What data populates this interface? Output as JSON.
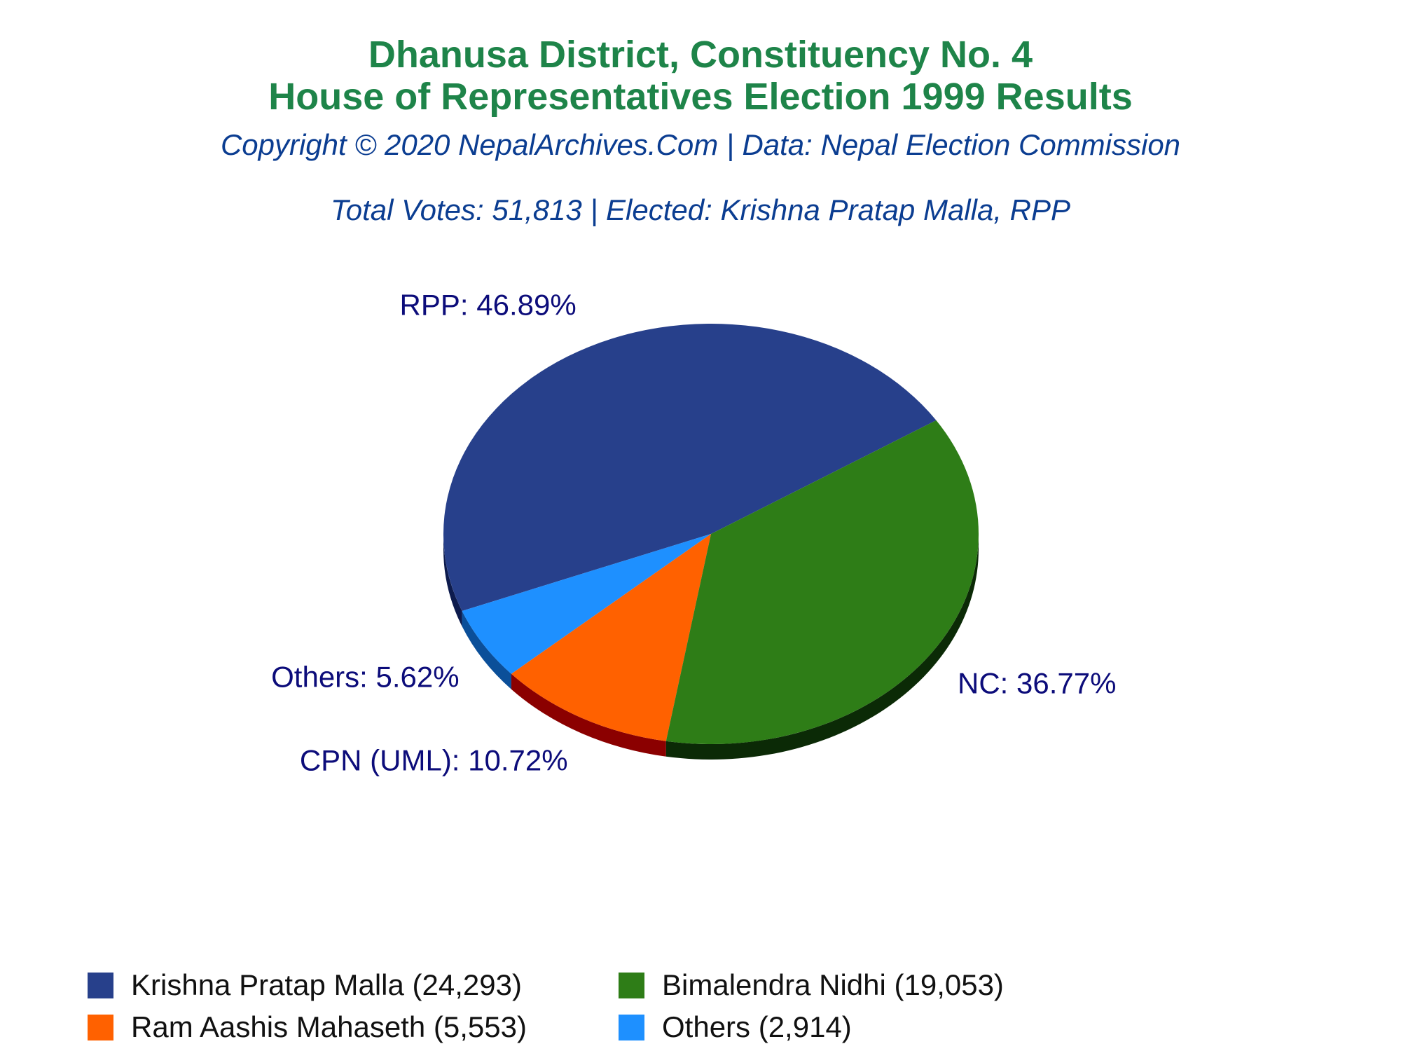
{
  "header": {
    "title_line1": "Dhanusa District, Constituency No. 4",
    "title_line2": "House of Representatives Election 1999 Results",
    "copyright": "Copyright © 2020 NepalArchives.Com | Data: Nepal Election Commission",
    "summary": "Total Votes: 51,813 | Elected: Krishna Pratap Malla, RPP"
  },
  "chart_data": {
    "type": "pie",
    "slices": [
      {
        "label": "RPP: 46.89%",
        "value": 46.89,
        "color": "#27408b",
        "side_color": "#0d1b4d"
      },
      {
        "label": "Others: 5.62%",
        "value": 5.62,
        "color": "#1e90ff",
        "side_color": "#0b4f99"
      },
      {
        "label": "CPN (UML): 10.72%",
        "value": 10.72,
        "color": "#ff6100",
        "side_color": "#8b0000"
      },
      {
        "label": "NC: 36.77%",
        "value": 36.77,
        "color": "#2e7d17",
        "side_color": "#0b2a06"
      }
    ],
    "legend": [
      {
        "label": "Krishna Pratap Malla (24,293)",
        "color": "#27408b"
      },
      {
        "label": "Bimalendra Nidhi (19,053)",
        "color": "#2e7d17"
      },
      {
        "label": "Ram Aashis Mahaseth (5,553)",
        "color": "#ff6100"
      },
      {
        "label": "Others (2,914)",
        "color": "#1e90ff"
      }
    ]
  }
}
